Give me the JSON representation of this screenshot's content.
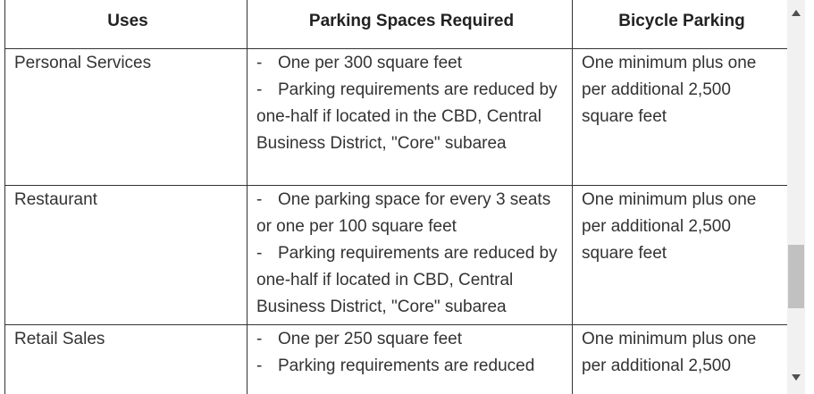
{
  "table": {
    "headers": {
      "uses": "Uses",
      "parking": "Parking Spaces Required",
      "bicycle": "Bicycle Parking"
    },
    "rows": [
      {
        "use": "Personal Services",
        "requirements": [
          "One per 300 square feet",
          "Parking requirements are reduced by one-half if located in the CBD, Central Business District, \"Core\" subarea"
        ],
        "bicycle": "One minimum plus one per additional 2,500 square feet"
      },
      {
        "use": "Restaurant",
        "requirements": [
          "One parking space for every 3 seats or one per 100 square feet",
          "Parking requirements are reduced by one-half if located in CBD, Central Business District, \"Core\" subarea"
        ],
        "bicycle": "One minimum plus one per additional 2,500 square feet"
      },
      {
        "use": "Retail Sales",
        "requirements": [
          "One per 250 square feet",
          "Parking requirements are reduced"
        ],
        "bicycle": "One minimum plus one per additional 2,500"
      }
    ],
    "dash": "-"
  },
  "scrollbar": {
    "up_icon": "triangle-up-icon",
    "down_icon": "triangle-down-icon",
    "position_fraction": 0.66
  },
  "colors": {
    "border": "#333333",
    "text": "#333333",
    "scroll_track": "#f1f1f1",
    "scroll_thumb": "#c1c1c1"
  }
}
